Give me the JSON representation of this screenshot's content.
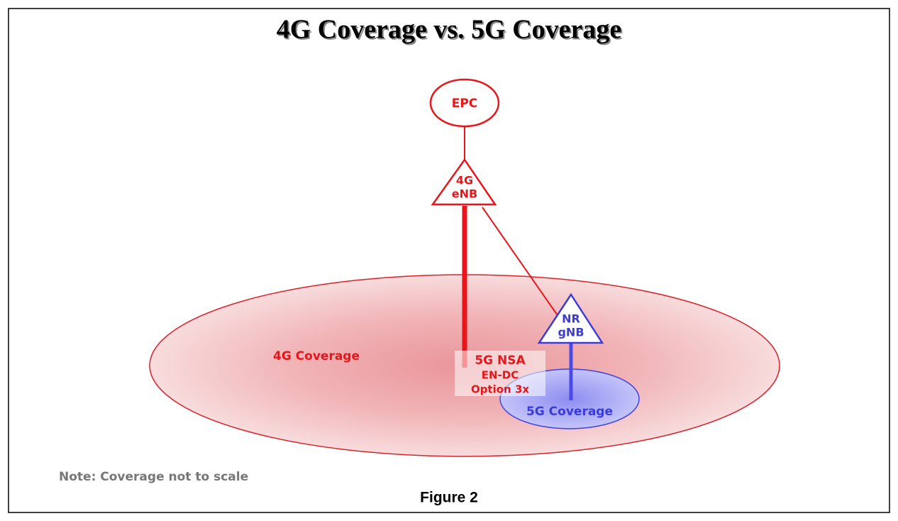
{
  "title": "4G Coverage vs. 5G Coverage",
  "nodes": [
    {
      "label": "EPC"
    },
    {
      "lines": [
        "4G",
        "eNB"
      ]
    },
    {
      "lines": [
        "NR",
        "gNB"
      ]
    }
  ],
  "coverage": [
    {
      "label": "4G Coverage"
    },
    {
      "label": "5G Coverage"
    }
  ],
  "nsa_box": {
    "lines": [
      "5G NSA",
      "EN-DC",
      "Option 3x"
    ]
  },
  "note": "Note: Coverage not to scale",
  "caption": "Figure 2"
}
